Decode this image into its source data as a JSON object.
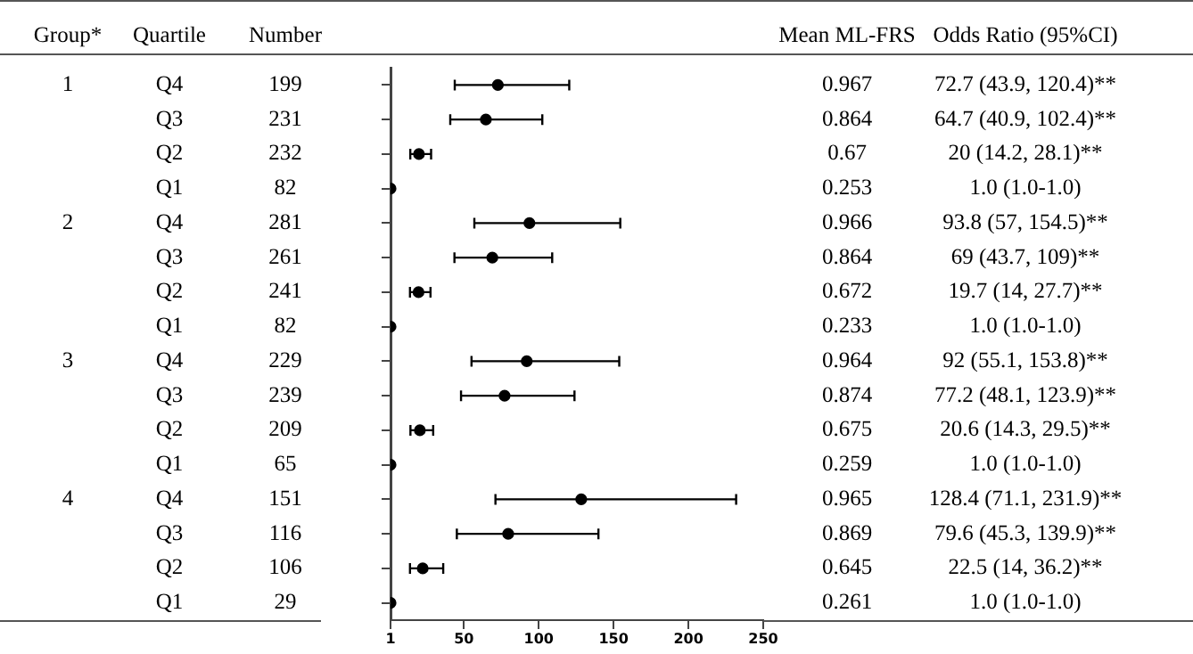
{
  "chart_data": {
    "type": "scatter",
    "orientation": "horizontal",
    "categories": [
      null,
      null,
      null,
      null,
      null,
      null,
      null,
      null,
      null,
      null,
      null,
      null,
      null,
      null,
      null,
      null
    ],
    "values": [
      72.7,
      64.7,
      20,
      1.0,
      93.8,
      69,
      19.7,
      1.0,
      92,
      77.2,
      20.6,
      1.0,
      128.4,
      79.6,
      22.5,
      1.0
    ],
    "errors": [
      [
        43.9,
        120.4
      ],
      [
        40.9,
        102.4
      ],
      [
        14.2,
        28.1
      ],
      [
        1.0,
        1.0
      ],
      [
        57,
        154.5
      ],
      [
        43.7,
        109
      ],
      [
        14,
        27.7
      ],
      [
        1.0,
        1.0
      ],
      [
        55.1,
        153.8
      ],
      [
        48.1,
        123.9
      ],
      [
        14.3,
        29.5
      ],
      [
        1.0,
        1.0
      ],
      [
        71.1,
        231.9
      ],
      [
        45.3,
        139.9
      ],
      [
        14,
        36.2
      ],
      [
        1.0,
        1.0
      ]
    ],
    "color": "#000000",
    "marker": "circle",
    "xlim": [
      1,
      250
    ],
    "xticks": [
      1,
      50,
      100,
      150,
      200,
      250
    ],
    "annotations": [
      "Group*",
      "Quartile",
      "Number",
      "Mean ML-FRS",
      "Odds Ratio (95%CI)",
      "1",
      "2",
      "3",
      "4",
      "Q4",
      "Q3",
      "Q2",
      "Q1",
      "Q4",
      "Q3",
      "Q2",
      "Q1",
      "Q4",
      "Q3",
      "Q2",
      "Q1",
      "Q4",
      "Q3",
      "Q2",
      "Q1",
      "199",
      "231",
      "232",
      "82",
      "281",
      "261",
      "241",
      "82",
      "229",
      "239",
      "209",
      "65",
      "151",
      "116",
      "106",
      "29",
      "0.967",
      "0.864",
      "0.67",
      "0.253",
      "0.966",
      "0.864",
      "0.672",
      "0.233",
      "0.964",
      "0.874",
      "0.675",
      "0.259",
      "0.965",
      "0.869",
      "0.645",
      "0.261",
      "72.7 (43.9, 120.4)**",
      "64.7 (40.9, 102.4)**",
      "20 (14.2, 28.1)**",
      "1.0 (1.0-1.0)",
      "93.8 (57, 154.5)**",
      "69 (43.7, 109)**",
      "19.7 (14, 27.7)**",
      "1.0 (1.0-1.0)",
      "92 (55.1, 153.8)**",
      "77.2 (48.1, 123.9)**",
      "20.6 (14.3, 29.5)**",
      "1.0 (1.0-1.0)",
      "128.4 (71.1, 231.9)**",
      "79.6 (45.3, 139.9)**",
      "22.5 (14, 36.2)**",
      "1.0 (1.0-1.0)"
    ]
  }
}
